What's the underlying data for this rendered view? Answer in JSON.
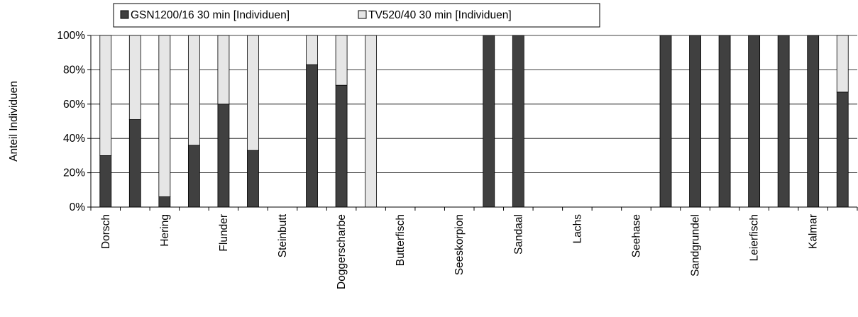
{
  "chart_data": {
    "type": "bar",
    "stacked": true,
    "percent": true,
    "ylabel": "Anteil Individuen",
    "ylim": [
      0,
      100
    ],
    "yticks": [
      "0%",
      "20%",
      "40%",
      "60%",
      "80%",
      "100%"
    ],
    "grid": true,
    "legend_position": "top",
    "categories": [
      "Dorsch",
      "",
      "Hering",
      "",
      "Flunder",
      "",
      "Steinbutt",
      "",
      "Doggerscharbe",
      "",
      "Butterfisch",
      "",
      "Seeskorpion",
      "",
      "Sandaal",
      "",
      "Lachs",
      "",
      "Seehase",
      "",
      "Sandgrundel",
      "",
      "Leierfisch",
      "",
      "Kalmar",
      ""
    ],
    "series": [
      {
        "name": "GSN1200/16 30 min [Individuen]",
        "color": "#404040",
        "values": [
          30,
          51,
          6,
          36,
          60,
          33,
          0,
          83,
          71,
          0,
          0,
          0,
          0,
          100,
          100,
          0,
          0,
          0,
          0,
          100,
          100,
          100,
          100,
          100,
          100,
          67
        ]
      },
      {
        "name": "TV520/40 30 min [Individuen]",
        "color": "#e6e6e6",
        "values": [
          70,
          49,
          94,
          64,
          40,
          67,
          0,
          17,
          29,
          100,
          0,
          0,
          0,
          0,
          0,
          0,
          0,
          0,
          0,
          0,
          0,
          0,
          0,
          0,
          0,
          33
        ]
      }
    ]
  }
}
